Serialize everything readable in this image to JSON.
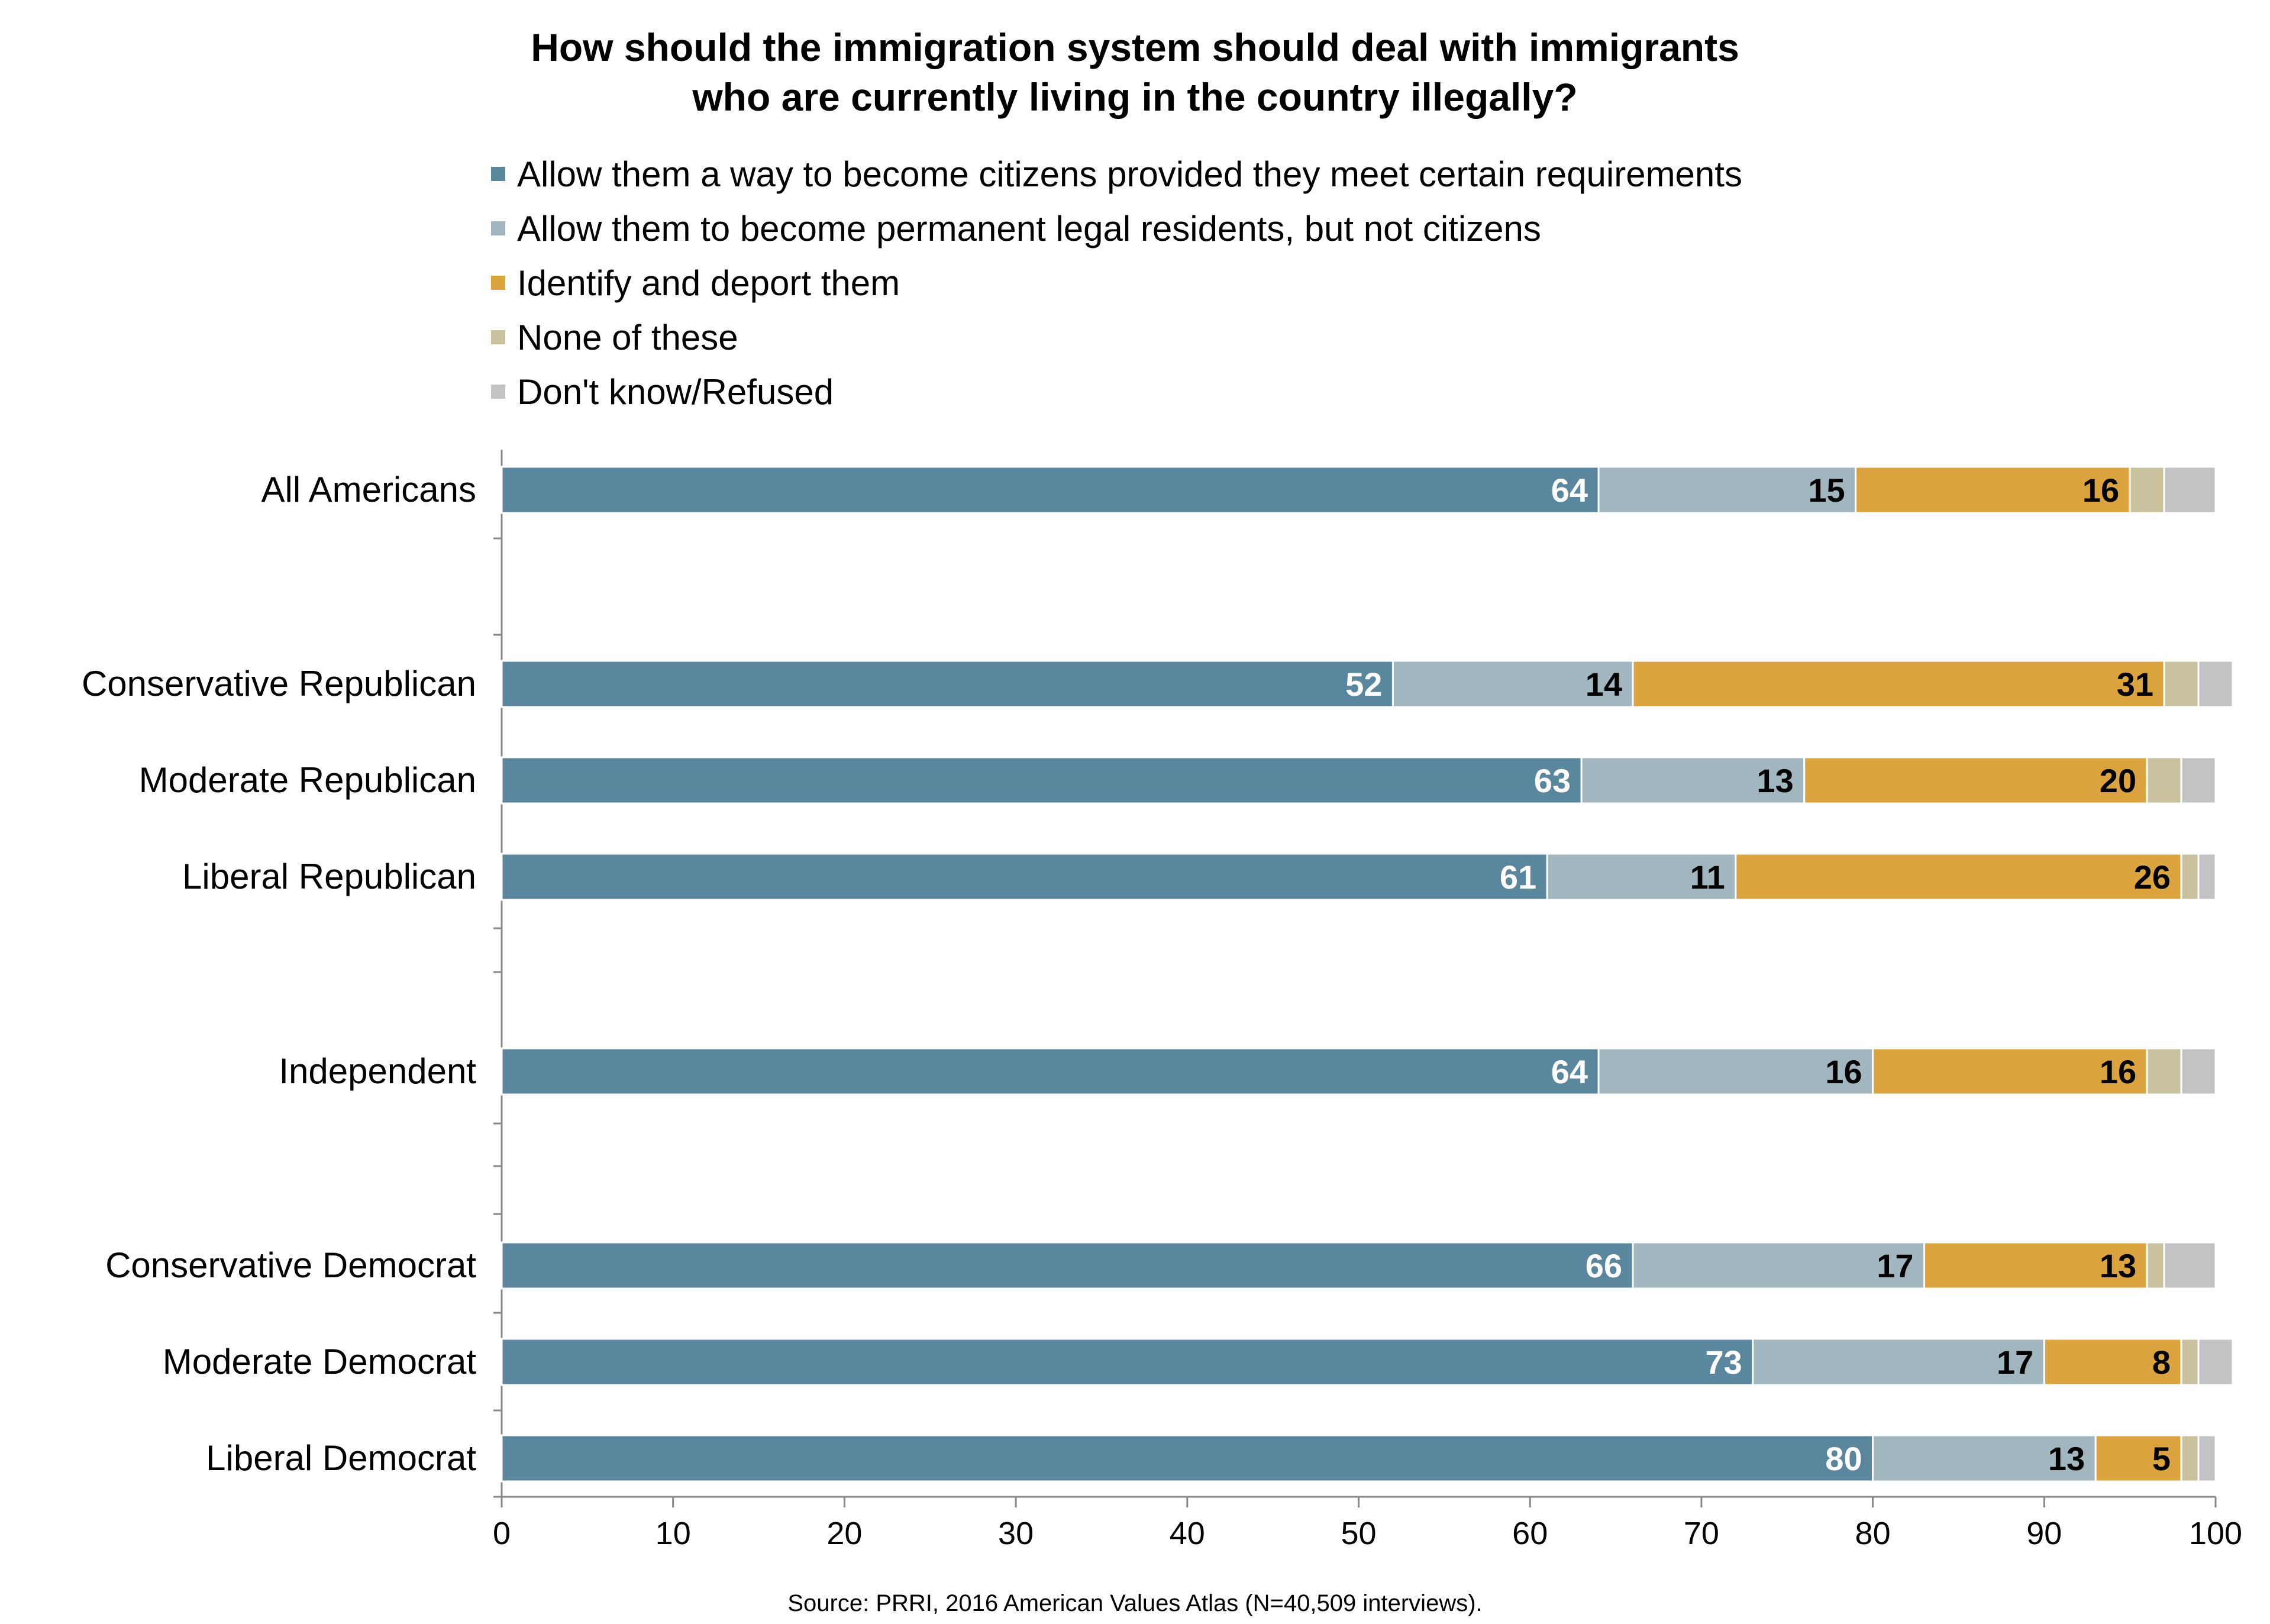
{
  "chart_data": {
    "type": "bar",
    "orientation": "horizontal",
    "stacked": true,
    "title": "How should the immigration system should deal with immigrants",
    "title_line2": "who are currently living in the country illegally?",
    "source": "Source: PRRI, 2016 American Values Atlas (N=40,509 interviews).",
    "categories": [
      "All Americans",
      "Conservative Republican",
      "Moderate Republican",
      "Liberal Republican",
      "Independent",
      "Conservative Democrat",
      "Moderate Democrat",
      "Liberal Democrat"
    ],
    "series": [
      {
        "name": "Allow them a way to become citizens provided they meet certain requirements",
        "color": "#5b879e",
        "label_color": "#ffffff",
        "values": [
          64,
          52,
          63,
          61,
          64,
          66,
          73,
          80
        ],
        "labels": [
          "64",
          "52",
          "63",
          "61",
          "64",
          "66",
          "73",
          "80"
        ]
      },
      {
        "name": "Allow them to become permanent legal residents, but not citizens",
        "color": "#a1b6be",
        "label_color": "#000000",
        "values": [
          15,
          14,
          13,
          11,
          16,
          17,
          17,
          13
        ],
        "labels": [
          "15",
          "14",
          "13",
          "11",
          "16",
          "17",
          "17",
          "13"
        ]
      },
      {
        "name": "Identify and deport them",
        "color": "#dca43f",
        "label_color": "#000000",
        "values": [
          16,
          31,
          20,
          26,
          16,
          13,
          8,
          5
        ],
        "labels": [
          "16",
          "31",
          "20",
          "26",
          "16",
          "13",
          "8",
          "5"
        ]
      },
      {
        "name": "None of these",
        "color": "#c9c19d",
        "label_color": "#000000",
        "values": [
          2,
          2,
          2,
          1,
          2,
          1,
          1,
          1
        ],
        "labels": [
          "",
          "",
          "",
          "",
          "",
          "",
          "",
          ""
        ]
      },
      {
        "name": "Don't know/Refused",
        "color": "#c3c3c5",
        "label_color": "#000000",
        "values": [
          3,
          2,
          2,
          1,
          2,
          3,
          2,
          1
        ],
        "labels": [
          "",
          "",
          "",
          "",
          "",
          "",
          "",
          ""
        ]
      }
    ],
    "x_ticks": [
      "0",
      "10",
      "20",
      "30",
      "40",
      "50",
      "60",
      "70",
      "80",
      "90",
      "100"
    ],
    "xlim": [
      0,
      100
    ],
    "grid": false,
    "legend_position": "top"
  }
}
